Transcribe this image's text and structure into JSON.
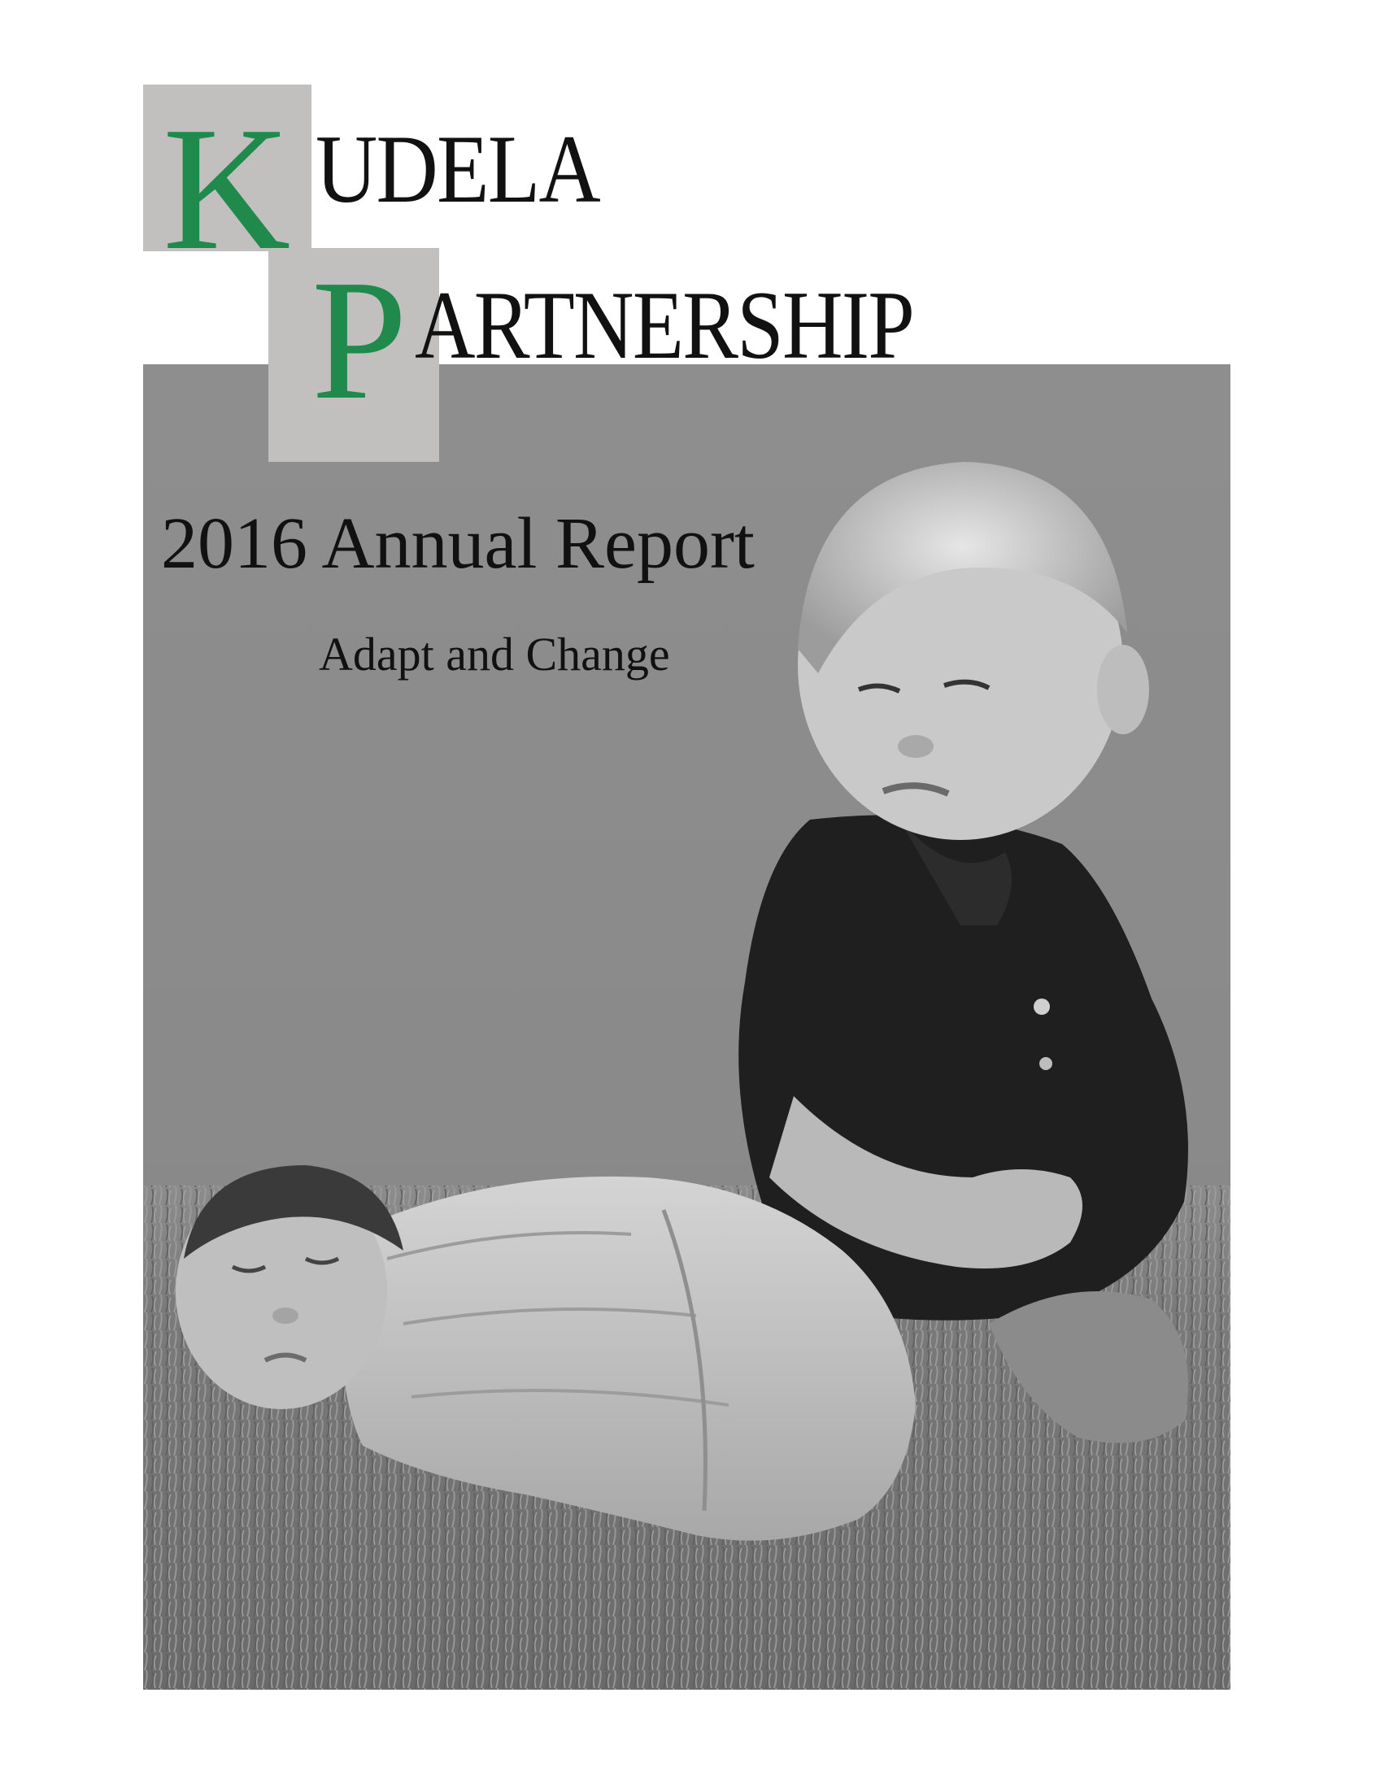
{
  "logo": {
    "line1_initial": "K",
    "line1_rest": "UDELA",
    "line2_initial": "P",
    "line2_rest": "ARTNERSHIP"
  },
  "cover": {
    "title": "2016 Annual Report",
    "subtitle": "Adapt and Change"
  },
  "colors": {
    "logo_green": "#1f8a4c",
    "logo_box_gray": "#c2c0be",
    "photo_background": "#8e8e8e"
  }
}
